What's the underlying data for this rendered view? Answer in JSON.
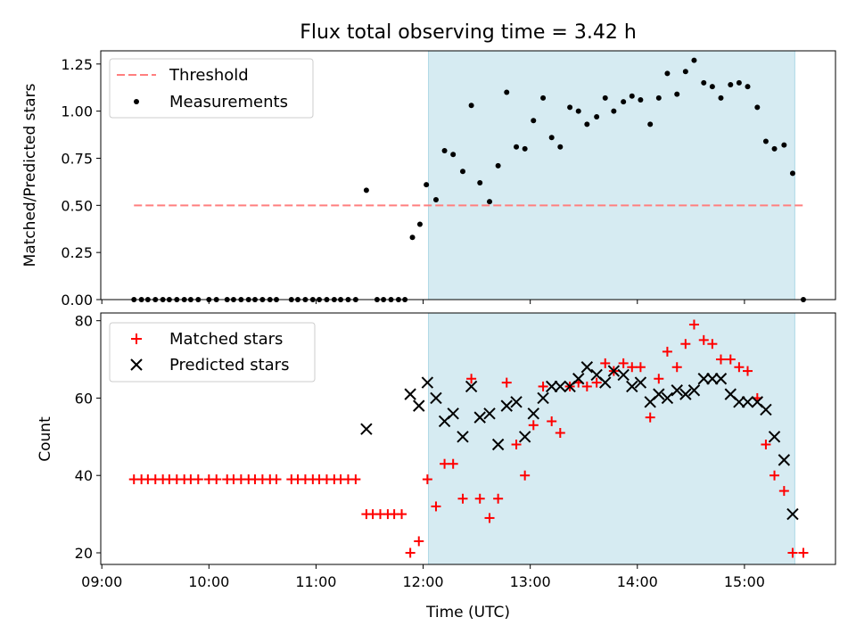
{
  "title": "Flux total observing time = 3.42 h",
  "chart_data": [
    {
      "type": "scatter",
      "panel": "top",
      "ylabel": "Matched/Predicted stars",
      "ylim": [
        0,
        1.32
      ],
      "yticks": [
        0.0,
        0.25,
        0.5,
        0.75,
        1.0,
        1.25
      ],
      "ytick_labels": [
        "0.00",
        "0.25",
        "0.50",
        "0.75",
        "1.00",
        "1.25"
      ],
      "legend_position": "top-left",
      "legend": [
        "Threshold",
        "Measurements"
      ],
      "threshold": {
        "label": "Threshold",
        "value": 0.5,
        "x_start": 9.3,
        "x_end": 15.55,
        "color": "#ff7f7f"
      },
      "observing_window": {
        "start": 12.05,
        "end": 15.47,
        "color": "#add8e6"
      },
      "series": [
        {
          "name": "Measurements",
          "color": "#000000",
          "x": [
            9.3,
            9.37,
            9.43,
            9.5,
            9.57,
            9.63,
            9.7,
            9.77,
            9.83,
            9.9,
            10.0,
            10.07,
            10.17,
            10.23,
            10.3,
            10.37,
            10.43,
            10.5,
            10.57,
            10.63,
            10.77,
            10.83,
            10.9,
            10.97,
            11.03,
            11.1,
            11.17,
            11.23,
            11.3,
            11.37,
            11.47,
            11.57,
            11.63,
            11.7,
            11.77,
            11.83,
            11.9,
            11.97,
            12.03,
            12.12,
            12.2,
            12.28,
            12.37,
            12.45,
            12.53,
            12.62,
            12.7,
            12.78,
            12.87,
            12.95,
            13.03,
            13.12,
            13.2,
            13.28,
            13.37,
            13.45,
            13.53,
            13.62,
            13.7,
            13.78,
            13.87,
            13.95,
            14.03,
            14.12,
            14.2,
            14.28,
            14.37,
            14.45,
            14.53,
            14.62,
            14.7,
            14.78,
            14.87,
            14.95,
            15.03,
            15.12,
            15.2,
            15.28,
            15.37,
            15.45,
            15.55
          ],
          "y": [
            0,
            0,
            0,
            0,
            0,
            0,
            0,
            0,
            0,
            0,
            0,
            0,
            0,
            0,
            0,
            0,
            0,
            0,
            0,
            0,
            0,
            0,
            0,
            0,
            0,
            0,
            0,
            0,
            0,
            0,
            0.58,
            0,
            0,
            0,
            0,
            0,
            0.33,
            0.4,
            0.61,
            0.53,
            0.79,
            0.77,
            0.68,
            1.03,
            0.62,
            0.52,
            0.71,
            1.1,
            0.81,
            0.8,
            0.95,
            1.07,
            0.86,
            0.81,
            1.02,
            1.0,
            0.93,
            0.97,
            1.07,
            1.0,
            1.05,
            1.08,
            1.06,
            0.93,
            1.07,
            1.2,
            1.09,
            1.21,
            1.27,
            1.15,
            1.13,
            1.07,
            1.14,
            1.15,
            1.13,
            1.02,
            0.84,
            0.8,
            0.82,
            0.67,
            0
          ]
        }
      ]
    },
    {
      "type": "scatter",
      "panel": "bottom",
      "xlabel": "Time (UTC)",
      "ylabel": "Count",
      "xlim": [
        8.99,
        15.85
      ],
      "ylim": [
        17,
        82
      ],
      "xticks": [
        9,
        10,
        11,
        12,
        13,
        14,
        15
      ],
      "xtick_labels": [
        "09:00",
        "10:00",
        "11:00",
        "12:00",
        "13:00",
        "14:00",
        "15:00"
      ],
      "yticks": [
        20,
        40,
        60,
        80
      ],
      "ytick_labels": [
        "20",
        "40",
        "60",
        "80"
      ],
      "legend_position": "top-left",
      "legend": [
        "Matched stars",
        "Predicted stars"
      ],
      "observing_window": {
        "start": 12.05,
        "end": 15.47,
        "color": "#add8e6"
      },
      "series": [
        {
          "name": "Matched stars",
          "marker": "plus",
          "color": "#ff0000",
          "x": [
            9.3,
            9.37,
            9.43,
            9.5,
            9.57,
            9.63,
            9.7,
            9.77,
            9.83,
            9.9,
            10.0,
            10.07,
            10.17,
            10.23,
            10.3,
            10.37,
            10.43,
            10.5,
            10.57,
            10.63,
            10.77,
            10.83,
            10.9,
            10.97,
            11.03,
            11.1,
            11.17,
            11.23,
            11.3,
            11.37,
            11.47,
            11.53,
            11.6,
            11.67,
            11.73,
            11.8,
            11.88,
            11.96,
            12.04,
            12.12,
            12.2,
            12.28,
            12.37,
            12.45,
            12.53,
            12.62,
            12.7,
            12.78,
            12.87,
            12.95,
            13.03,
            13.12,
            13.2,
            13.28,
            13.37,
            13.45,
            13.53,
            13.62,
            13.7,
            13.78,
            13.87,
            13.95,
            14.03,
            14.12,
            14.2,
            14.28,
            14.37,
            14.45,
            14.53,
            14.62,
            14.7,
            14.78,
            14.87,
            14.95,
            15.03,
            15.12,
            15.2,
            15.28,
            15.37,
            15.45,
            15.55
          ],
          "y": [
            39,
            39,
            39,
            39,
            39,
            39,
            39,
            39,
            39,
            39,
            39,
            39,
            39,
            39,
            39,
            39,
            39,
            39,
            39,
            39,
            39,
            39,
            39,
            39,
            39,
            39,
            39,
            39,
            39,
            39,
            30,
            30,
            30,
            30,
            30,
            30,
            20,
            23,
            39,
            32,
            43,
            43,
            34,
            65,
            34,
            29,
            34,
            64,
            48,
            40,
            53,
            63,
            54,
            51,
            63,
            64,
            63,
            64,
            69,
            67,
            69,
            68,
            68,
            55,
            65,
            72,
            68,
            74,
            79,
            75,
            74,
            70,
            70,
            68,
            67,
            60,
            48,
            40,
            36,
            20,
            20
          ]
        },
        {
          "name": "Predicted stars",
          "marker": "x",
          "color": "#000000",
          "x": [
            11.47,
            11.88,
            11.96,
            12.04,
            12.12,
            12.2,
            12.28,
            12.37,
            12.45,
            12.53,
            12.62,
            12.7,
            12.78,
            12.87,
            12.95,
            13.03,
            13.12,
            13.2,
            13.28,
            13.37,
            13.45,
            13.53,
            13.62,
            13.7,
            13.78,
            13.87,
            13.95,
            14.03,
            14.12,
            14.2,
            14.28,
            14.37,
            14.45,
            14.53,
            14.62,
            14.7,
            14.78,
            14.87,
            14.95,
            15.03,
            15.12,
            15.2,
            15.28,
            15.37,
            15.45
          ],
          "y": [
            52,
            61,
            58,
            64,
            60,
            54,
            56,
            50,
            63,
            55,
            56,
            48,
            58,
            59,
            50,
            56,
            60,
            63,
            63,
            63,
            65,
            68,
            66,
            64,
            67,
            66,
            63,
            64,
            59,
            61,
            60,
            62,
            61,
            62,
            65,
            65,
            65,
            61,
            59,
            59,
            59,
            57,
            50,
            44,
            30
          ]
        }
      ]
    }
  ]
}
